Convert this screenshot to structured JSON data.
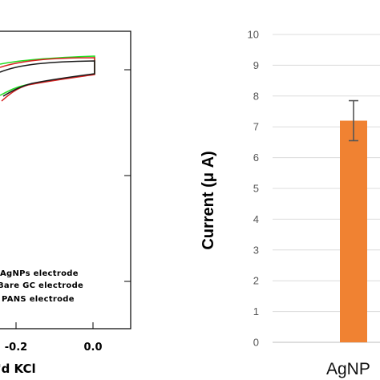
{
  "chart_data": [
    {
      "type": "line",
      "xlabel": "'d KCl",
      "x_ticks": [
        "-0.2",
        "0.0"
      ],
      "legend": [
        "AgNPs electrode",
        "Bare GC electrode",
        "PANS electrode"
      ],
      "series": [
        {
          "name": "AgNPs electrode",
          "color": "#d62020"
        },
        {
          "name": "Bare GC electrode",
          "color": "#1a1a1a"
        },
        {
          "name": "PANS electrode",
          "color": "#22dd22"
        }
      ]
    },
    {
      "type": "bar",
      "ylabel": "Current (μ A)",
      "ylim": [
        0,
        10
      ],
      "y_ticks": [
        "0",
        "1",
        "2",
        "3",
        "4",
        "5",
        "6",
        "7",
        "8",
        "9",
        "10"
      ],
      "categories": [
        "AgNP"
      ],
      "values": [
        7.2
      ],
      "error": [
        0.65
      ],
      "bar_color": "#f08232",
      "grid": true
    }
  ]
}
